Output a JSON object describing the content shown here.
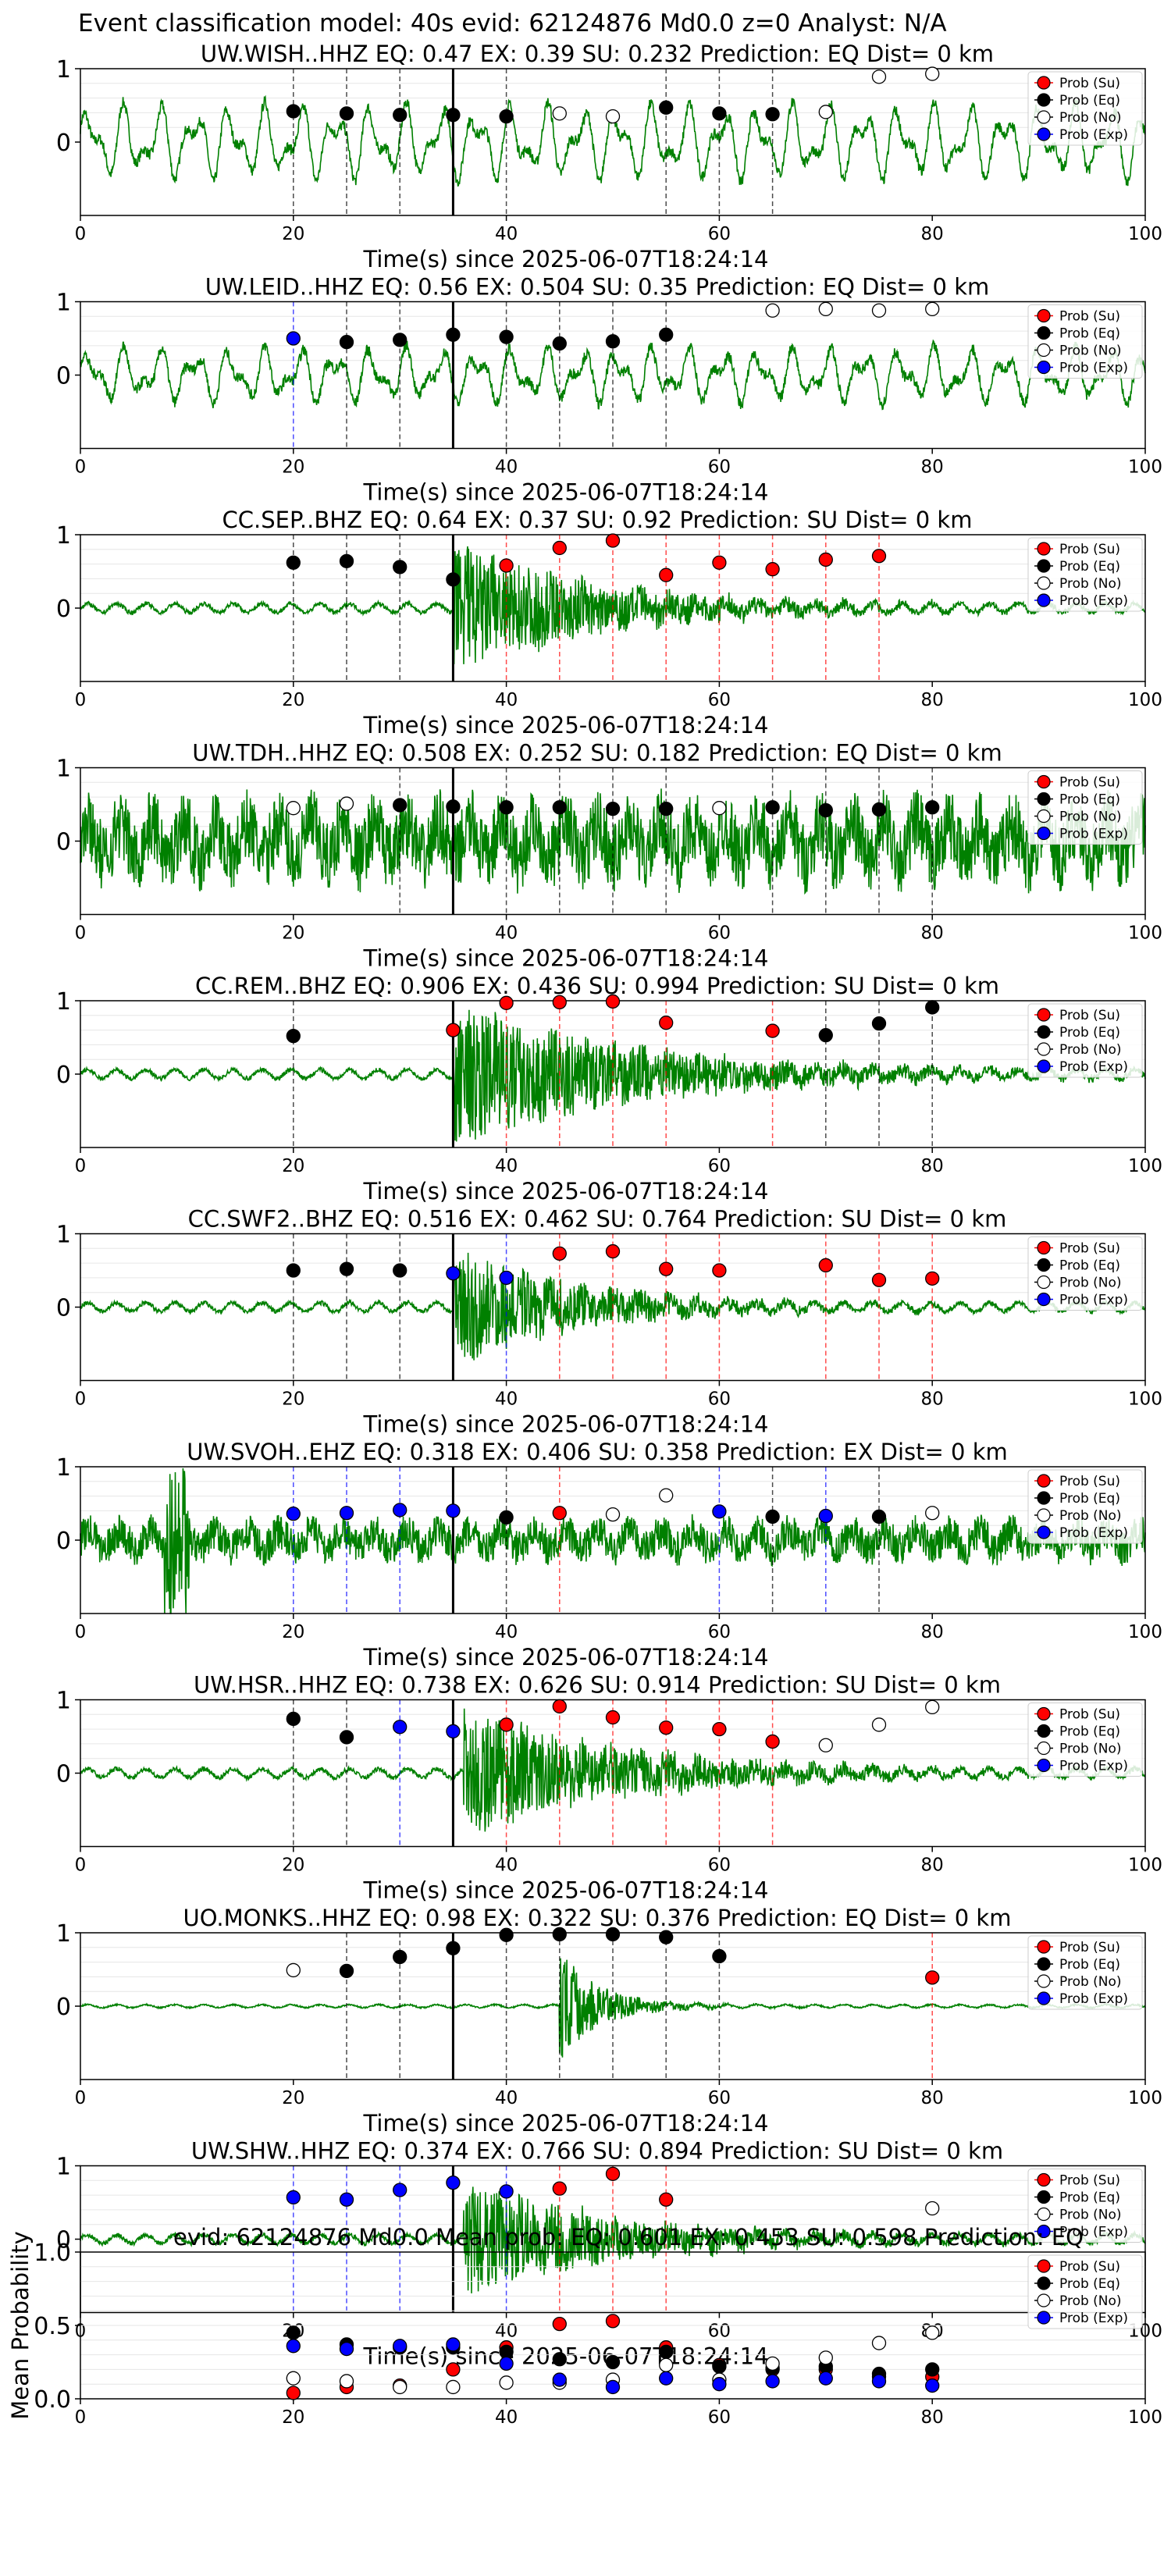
{
  "figure_title": "Event classification model: 40s evid: 62124876 Md0.0 z=0 Analyst: N/A",
  "legend": [
    "Prob (Su)",
    "Prob (Eq)",
    "Prob (No)",
    "Prob (Exp)"
  ],
  "colors": {
    "su": "#ff0000",
    "eq": "#000000",
    "no": "#ffffff",
    "exp": "#0000ff",
    "waveform": "#008000",
    "arrival": "#000000"
  },
  "chart_data": [
    {
      "type": "scatter",
      "title": "UW.WISH..HHZ   EQ: 0.47  EX: 0.39  SU: 0.232   Prediction: EQ    Dist= 0 km",
      "xlabel": "Time(s) since 2025-06-07T18:24:14",
      "xlim": [
        0,
        100
      ],
      "ylim": [
        -1,
        1
      ],
      "xticks": [
        "0",
        "20",
        "40",
        "60",
        "80",
        "100"
      ],
      "yticks": [
        "0",
        "1"
      ],
      "arrival_x": 35,
      "waveform": {
        "style": "sine",
        "amplitude": 0.55
      },
      "points": [
        {
          "x": 20,
          "y": 0.42,
          "cls": "eq"
        },
        {
          "x": 25,
          "y": 0.39,
          "cls": "eq"
        },
        {
          "x": 30,
          "y": 0.37,
          "cls": "eq"
        },
        {
          "x": 35,
          "y": 0.37,
          "cls": "eq"
        },
        {
          "x": 40,
          "y": 0.35,
          "cls": "eq"
        },
        {
          "x": 45,
          "y": 0.39,
          "cls": "no"
        },
        {
          "x": 50,
          "y": 0.35,
          "cls": "no"
        },
        {
          "x": 55,
          "y": 0.47,
          "cls": "eq"
        },
        {
          "x": 60,
          "y": 0.39,
          "cls": "eq"
        },
        {
          "x": 65,
          "y": 0.38,
          "cls": "eq"
        },
        {
          "x": 70,
          "y": 0.41,
          "cls": "no"
        },
        {
          "x": 75,
          "y": 0.89,
          "cls": "no"
        },
        {
          "x": 80,
          "y": 0.93,
          "cls": "no"
        }
      ]
    },
    {
      "type": "scatter",
      "title": "UW.LEID..HHZ   EQ: 0.56  EX: 0.504  SU: 0.35   Prediction: EQ    Dist= 0 km",
      "xlabel": "Time(s) since 2025-06-07T18:24:14",
      "xlim": [
        0,
        100
      ],
      "ylim": [
        -1,
        1
      ],
      "xticks": [
        "0",
        "20",
        "40",
        "60",
        "80",
        "100"
      ],
      "yticks": [
        "0",
        "1"
      ],
      "arrival_x": 35,
      "waveform": {
        "style": "sine",
        "amplitude": 0.4
      },
      "points": [
        {
          "x": 20,
          "y": 0.5,
          "cls": "exp"
        },
        {
          "x": 25,
          "y": 0.45,
          "cls": "eq"
        },
        {
          "x": 30,
          "y": 0.48,
          "cls": "eq"
        },
        {
          "x": 35,
          "y": 0.55,
          "cls": "eq"
        },
        {
          "x": 40,
          "y": 0.52,
          "cls": "eq"
        },
        {
          "x": 45,
          "y": 0.43,
          "cls": "eq"
        },
        {
          "x": 50,
          "y": 0.46,
          "cls": "eq"
        },
        {
          "x": 55,
          "y": 0.55,
          "cls": "eq"
        },
        {
          "x": 65,
          "y": 0.88,
          "cls": "no"
        },
        {
          "x": 70,
          "y": 0.9,
          "cls": "no"
        },
        {
          "x": 75,
          "y": 0.88,
          "cls": "no"
        },
        {
          "x": 80,
          "y": 0.9,
          "cls": "no"
        }
      ]
    },
    {
      "type": "scatter",
      "title": "CC.SEP..BHZ   EQ: 0.64  EX: 0.37  SU: 0.92   Prediction: SU    Dist= 0 km",
      "xlabel": "Time(s) since 2025-06-07T18:24:14",
      "xlim": [
        0,
        100
      ],
      "ylim": [
        -1,
        1
      ],
      "xticks": [
        "0",
        "20",
        "40",
        "60",
        "80",
        "100"
      ],
      "yticks": [
        "0",
        "1"
      ],
      "arrival_x": 35,
      "waveform": {
        "style": "burst",
        "amplitude": 0.85,
        "start": 35,
        "decay": 14
      },
      "points": [
        {
          "x": 20,
          "y": 0.62,
          "cls": "eq"
        },
        {
          "x": 25,
          "y": 0.64,
          "cls": "eq"
        },
        {
          "x": 30,
          "y": 0.56,
          "cls": "eq"
        },
        {
          "x": 35,
          "y": 0.39,
          "cls": "eq"
        },
        {
          "x": 40,
          "y": 0.58,
          "cls": "su"
        },
        {
          "x": 45,
          "y": 0.82,
          "cls": "su"
        },
        {
          "x": 50,
          "y": 0.92,
          "cls": "su"
        },
        {
          "x": 55,
          "y": 0.45,
          "cls": "su"
        },
        {
          "x": 60,
          "y": 0.62,
          "cls": "su"
        },
        {
          "x": 65,
          "y": 0.53,
          "cls": "su"
        },
        {
          "x": 70,
          "y": 0.66,
          "cls": "su"
        },
        {
          "x": 75,
          "y": 0.71,
          "cls": "su"
        }
      ]
    },
    {
      "type": "scatter",
      "title": "UW.TDH..HHZ   EQ: 0.508  EX: 0.252  SU: 0.182   Prediction: EQ    Dist= 0 km",
      "xlabel": "Time(s) since 2025-06-07T18:24:14",
      "xlim": [
        0,
        100
      ],
      "ylim": [
        -1,
        1
      ],
      "xticks": [
        "0",
        "20",
        "40",
        "60",
        "80",
        "100"
      ],
      "yticks": [
        "0",
        "1"
      ],
      "arrival_x": 35,
      "waveform": {
        "style": "noisy",
        "amplitude": 0.6
      },
      "points": [
        {
          "x": 20,
          "y": 0.45,
          "cls": "no"
        },
        {
          "x": 25,
          "y": 0.51,
          "cls": "no"
        },
        {
          "x": 30,
          "y": 0.49,
          "cls": "eq"
        },
        {
          "x": 35,
          "y": 0.47,
          "cls": "eq"
        },
        {
          "x": 40,
          "y": 0.46,
          "cls": "eq"
        },
        {
          "x": 45,
          "y": 0.46,
          "cls": "eq"
        },
        {
          "x": 50,
          "y": 0.44,
          "cls": "eq"
        },
        {
          "x": 55,
          "y": 0.44,
          "cls": "eq"
        },
        {
          "x": 60,
          "y": 0.45,
          "cls": "no"
        },
        {
          "x": 65,
          "y": 0.46,
          "cls": "eq"
        },
        {
          "x": 70,
          "y": 0.42,
          "cls": "eq"
        },
        {
          "x": 75,
          "y": 0.43,
          "cls": "eq"
        },
        {
          "x": 80,
          "y": 0.46,
          "cls": "eq"
        }
      ]
    },
    {
      "type": "scatter",
      "title": "CC.REM..BHZ   EQ: 0.906  EX: 0.436  SU: 0.994   Prediction: SU    Dist= 0 km",
      "xlabel": "Time(s) since 2025-06-07T18:24:14",
      "xlim": [
        0,
        100
      ],
      "ylim": [
        -1,
        1
      ],
      "xticks": [
        "0",
        "20",
        "40",
        "60",
        "80",
        "100"
      ],
      "yticks": [
        "0",
        "1"
      ],
      "arrival_x": 35,
      "waveform": {
        "style": "burst",
        "amplitude": 0.9,
        "start": 35,
        "decay": 18
      },
      "points": [
        {
          "x": 20,
          "y": 0.52,
          "cls": "eq"
        },
        {
          "x": 35,
          "y": 0.6,
          "cls": "su"
        },
        {
          "x": 40,
          "y": 0.97,
          "cls": "su"
        },
        {
          "x": 45,
          "y": 0.98,
          "cls": "su"
        },
        {
          "x": 50,
          "y": 0.99,
          "cls": "su"
        },
        {
          "x": 55,
          "y": 0.7,
          "cls": "su"
        },
        {
          "x": 65,
          "y": 0.59,
          "cls": "su"
        },
        {
          "x": 70,
          "y": 0.53,
          "cls": "eq"
        },
        {
          "x": 75,
          "y": 0.69,
          "cls": "eq"
        },
        {
          "x": 80,
          "y": 0.91,
          "cls": "eq"
        }
      ]
    },
    {
      "type": "scatter",
      "title": "CC.SWF2..BHZ   EQ: 0.516  EX: 0.462  SU: 0.764   Prediction: SU    Dist= 0 km",
      "xlabel": "Time(s) since 2025-06-07T18:24:14",
      "xlim": [
        0,
        100
      ],
      "ylim": [
        -1,
        1
      ],
      "xticks": [
        "0",
        "20",
        "40",
        "60",
        "80",
        "100"
      ],
      "yticks": [
        "0",
        "1"
      ],
      "arrival_x": 35,
      "waveform": {
        "style": "burst",
        "amplitude": 0.75,
        "start": 35,
        "decay": 12
      },
      "points": [
        {
          "x": 20,
          "y": 0.5,
          "cls": "eq"
        },
        {
          "x": 25,
          "y": 0.52,
          "cls": "eq"
        },
        {
          "x": 30,
          "y": 0.5,
          "cls": "eq"
        },
        {
          "x": 35,
          "y": 0.46,
          "cls": "exp"
        },
        {
          "x": 40,
          "y": 0.4,
          "cls": "exp"
        },
        {
          "x": 45,
          "y": 0.73,
          "cls": "su"
        },
        {
          "x": 50,
          "y": 0.76,
          "cls": "su"
        },
        {
          "x": 55,
          "y": 0.52,
          "cls": "su"
        },
        {
          "x": 60,
          "y": 0.5,
          "cls": "su"
        },
        {
          "x": 70,
          "y": 0.57,
          "cls": "su"
        },
        {
          "x": 75,
          "y": 0.37,
          "cls": "su"
        },
        {
          "x": 80,
          "y": 0.39,
          "cls": "su"
        }
      ]
    },
    {
      "type": "scatter",
      "title": "UW.SVOH..EHZ   EQ: 0.318  EX: 0.406  SU: 0.358   Prediction: EX    Dist= 0 km",
      "xlabel": "Time(s) since 2025-06-07T18:24:14",
      "xlim": [
        0,
        100
      ],
      "ylim": [
        -1,
        1
      ],
      "xticks": [
        "0",
        "20",
        "40",
        "60",
        "80",
        "100"
      ],
      "yticks": [
        "0",
        "1"
      ],
      "arrival_x": 35,
      "waveform": {
        "style": "noisy",
        "amplitude": 0.3,
        "spike_at": 9
      },
      "points": [
        {
          "x": 20,
          "y": 0.36,
          "cls": "exp"
        },
        {
          "x": 25,
          "y": 0.37,
          "cls": "exp"
        },
        {
          "x": 30,
          "y": 0.41,
          "cls": "exp"
        },
        {
          "x": 35,
          "y": 0.4,
          "cls": "exp"
        },
        {
          "x": 40,
          "y": 0.31,
          "cls": "eq"
        },
        {
          "x": 45,
          "y": 0.37,
          "cls": "su"
        },
        {
          "x": 50,
          "y": 0.35,
          "cls": "no"
        },
        {
          "x": 55,
          "y": 0.61,
          "cls": "no"
        },
        {
          "x": 60,
          "y": 0.39,
          "cls": "exp"
        },
        {
          "x": 65,
          "y": 0.32,
          "cls": "eq"
        },
        {
          "x": 70,
          "y": 0.33,
          "cls": "exp"
        },
        {
          "x": 75,
          "y": 0.32,
          "cls": "eq"
        },
        {
          "x": 80,
          "y": 0.37,
          "cls": "no"
        }
      ]
    },
    {
      "type": "scatter",
      "title": "UW.HSR..HHZ   EQ: 0.738  EX: 0.626  SU: 0.914   Prediction: SU    Dist= 0 km",
      "xlabel": "Time(s) since 2025-06-07T18:24:14",
      "xlim": [
        0,
        100
      ],
      "ylim": [
        -1,
        1
      ],
      "xticks": [
        "0",
        "20",
        "40",
        "60",
        "80",
        "100"
      ],
      "yticks": [
        "0",
        "1"
      ],
      "arrival_x": 35,
      "waveform": {
        "style": "burst",
        "amplitude": 0.8,
        "start": 36,
        "decay": 16
      },
      "points": [
        {
          "x": 20,
          "y": 0.74,
          "cls": "eq"
        },
        {
          "x": 25,
          "y": 0.49,
          "cls": "eq"
        },
        {
          "x": 30,
          "y": 0.63,
          "cls": "exp"
        },
        {
          "x": 35,
          "y": 0.57,
          "cls": "exp"
        },
        {
          "x": 40,
          "y": 0.66,
          "cls": "su"
        },
        {
          "x": 45,
          "y": 0.91,
          "cls": "su"
        },
        {
          "x": 50,
          "y": 0.76,
          "cls": "su"
        },
        {
          "x": 55,
          "y": 0.62,
          "cls": "su"
        },
        {
          "x": 60,
          "y": 0.6,
          "cls": "su"
        },
        {
          "x": 65,
          "y": 0.43,
          "cls": "su"
        },
        {
          "x": 70,
          "y": 0.38,
          "cls": "no"
        },
        {
          "x": 75,
          "y": 0.66,
          "cls": "no"
        },
        {
          "x": 80,
          "y": 0.9,
          "cls": "no"
        }
      ]
    },
    {
      "type": "scatter",
      "title": "UO.MONKS..HHZ   EQ: 0.98  EX: 0.322  SU: 0.376   Prediction: EQ    Dist= 0 km",
      "xlabel": "Time(s) since 2025-06-07T18:24:14",
      "xlim": [
        0,
        100
      ],
      "ylim": [
        -1,
        1
      ],
      "xticks": [
        "0",
        "20",
        "40",
        "60",
        "80",
        "100"
      ],
      "yticks": [
        "0",
        "1"
      ],
      "arrival_x": 35,
      "waveform": {
        "style": "burst",
        "amplitude": 0.7,
        "start": 45,
        "decay": 4,
        "quiet": true
      },
      "points": [
        {
          "x": 20,
          "y": 0.49,
          "cls": "no"
        },
        {
          "x": 25,
          "y": 0.48,
          "cls": "eq"
        },
        {
          "x": 30,
          "y": 0.67,
          "cls": "eq"
        },
        {
          "x": 35,
          "y": 0.79,
          "cls": "eq"
        },
        {
          "x": 40,
          "y": 0.97,
          "cls": "eq"
        },
        {
          "x": 45,
          "y": 0.98,
          "cls": "eq"
        },
        {
          "x": 50,
          "y": 0.98,
          "cls": "eq"
        },
        {
          "x": 55,
          "y": 0.94,
          "cls": "eq"
        },
        {
          "x": 60,
          "y": 0.68,
          "cls": "eq"
        },
        {
          "x": 80,
          "y": 0.39,
          "cls": "su"
        }
      ]
    },
    {
      "type": "scatter",
      "title": "UW.SHW..HHZ   EQ: 0.374  EX: 0.766  SU: 0.894   Prediction: SU    Dist= 0 km",
      "xlabel": "Time(s) since 2025-06-07T18:24:14",
      "xlim": [
        0,
        100
      ],
      "ylim": [
        -1,
        1
      ],
      "xticks": [
        "0",
        "20",
        "40",
        "60",
        "80",
        "100"
      ],
      "yticks": [
        "0",
        "1"
      ],
      "arrival_x": 35,
      "waveform": {
        "style": "burst",
        "amplitude": 0.75,
        "start": 36,
        "decay": 14
      },
      "points": [
        {
          "x": 20,
          "y": 0.57,
          "cls": "exp"
        },
        {
          "x": 25,
          "y": 0.54,
          "cls": "exp"
        },
        {
          "x": 30,
          "y": 0.67,
          "cls": "exp"
        },
        {
          "x": 35,
          "y": 0.77,
          "cls": "exp"
        },
        {
          "x": 40,
          "y": 0.65,
          "cls": "exp"
        },
        {
          "x": 45,
          "y": 0.69,
          "cls": "su"
        },
        {
          "x": 50,
          "y": 0.89,
          "cls": "su"
        },
        {
          "x": 55,
          "y": 0.54,
          "cls": "su"
        },
        {
          "x": 80,
          "y": 0.42,
          "cls": "no"
        }
      ]
    },
    {
      "type": "scatter",
      "title": "evid: 62124876  Md0.0   Mean prob:   EQ: 0.601  EX: 0.453  SU: 0.598   Prediction: EQ",
      "xlabel": "",
      "ylabel": "Mean Probability",
      "xlim": [
        0,
        100
      ],
      "ylim": [
        0,
        1
      ],
      "xticks": [
        "0",
        "20",
        "40",
        "60",
        "80",
        "100"
      ],
      "yticks": [
        "0.0",
        "0.5",
        "1.0"
      ],
      "series": [
        {
          "name": "Prob (Su)",
          "cls": "su",
          "x": [
            20,
            25,
            30,
            35,
            40,
            45,
            50,
            55,
            60,
            65,
            70,
            75,
            80
          ],
          "y": [
            0.04,
            0.08,
            0.09,
            0.2,
            0.35,
            0.51,
            0.53,
            0.35,
            0.23,
            0.2,
            0.2,
            0.15,
            0.15
          ]
        },
        {
          "name": "Prob (Eq)",
          "cls": "eq",
          "x": [
            20,
            25,
            30,
            35,
            40,
            45,
            50,
            55,
            60,
            65,
            70,
            75,
            80
          ],
          "y": [
            0.45,
            0.37,
            0.35,
            0.35,
            0.32,
            0.27,
            0.25,
            0.32,
            0.22,
            0.21,
            0.22,
            0.17,
            0.2
          ]
        },
        {
          "name": "Prob (No)",
          "cls": "no",
          "x": [
            20,
            25,
            30,
            35,
            40,
            45,
            50,
            55,
            60,
            65,
            70,
            75,
            80
          ],
          "y": [
            0.14,
            0.12,
            0.08,
            0.08,
            0.11,
            0.11,
            0.13,
            0.23,
            0.13,
            0.24,
            0.28,
            0.38,
            0.45
          ]
        },
        {
          "name": "Prob (Exp)",
          "cls": "exp",
          "x": [
            20,
            25,
            30,
            35,
            40,
            45,
            50,
            55,
            60,
            65,
            70,
            75,
            80
          ],
          "y": [
            0.36,
            0.34,
            0.36,
            0.37,
            0.24,
            0.13,
            0.08,
            0.14,
            0.1,
            0.12,
            0.14,
            0.12,
            0.09
          ]
        }
      ]
    }
  ]
}
